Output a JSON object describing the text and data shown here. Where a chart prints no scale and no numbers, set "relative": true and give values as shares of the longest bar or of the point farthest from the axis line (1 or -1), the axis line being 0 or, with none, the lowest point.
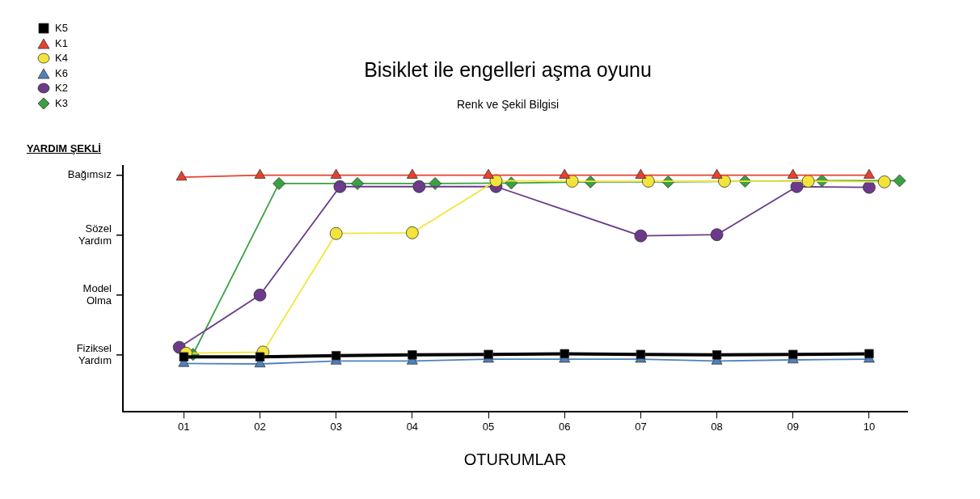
{
  "chart_data": {
    "type": "line",
    "title": "Bisiklet ile engelleri aşma oyunu",
    "subtitle": "Renk ve Şekil Bilgisi",
    "xlabel": "OTURUMLAR",
    "ylabel": "YARDIM ŞEKLİ",
    "relative": true,
    "xlim": [
      0.2,
      10.5
    ],
    "xticks": [
      {
        "value": 1,
        "label": "01"
      },
      {
        "value": 2,
        "label": "02"
      },
      {
        "value": 3,
        "label": "03"
      },
      {
        "value": 4,
        "label": "04"
      },
      {
        "value": 5,
        "label": "05"
      },
      {
        "value": 6,
        "label": "06"
      },
      {
        "value": 7,
        "label": "07"
      },
      {
        "value": 8,
        "label": "08"
      },
      {
        "value": 9,
        "label": "09"
      },
      {
        "value": 10,
        "label": "10"
      }
    ],
    "annotations": [
      "Fiziksel Yardım",
      "Model Olma",
      "Sözel Yardım",
      "Bağımsız"
    ],
    "legend": "top left",
    "line_style": "solid",
    "series": [
      {
        "name": "K5",
        "color": "#000000",
        "marker": "square",
        "x": [
          1,
          2,
          3,
          4,
          5,
          6,
          7,
          8,
          9,
          10
        ],
        "values": [
          0.233,
          0.233,
          0.238,
          0.241,
          0.243,
          0.246,
          0.243,
          0.241,
          0.243,
          0.246
        ]
      },
      {
        "name": "K1",
        "color": "#e8412c",
        "marker": "triangle",
        "x": [
          0.97,
          2,
          3,
          4,
          5,
          6,
          7,
          8,
          9,
          10
        ],
        "values": [
          0.992,
          1,
          1,
          1,
          1,
          1,
          1,
          1,
          1,
          1
        ]
      },
      {
        "name": "K4",
        "color": "#f3e43a",
        "marker": "circle",
        "x": [
          1.03,
          2.04,
          3,
          4,
          5.1,
          6.1,
          7.1,
          8.1,
          9.2,
          10.2
        ],
        "values": [
          0.248,
          0.253,
          0.754,
          0.757,
          0.977,
          0.975,
          0.975,
          0.975,
          0.975,
          0.972
        ]
      },
      {
        "name": "K6",
        "color": "#4f81bd",
        "marker": "triangle",
        "x": [
          1,
          2,
          3,
          4,
          5,
          6,
          7,
          8,
          9,
          10
        ],
        "values": [
          0.205,
          0.203,
          0.215,
          0.215,
          0.223,
          0.223,
          0.223,
          0.215,
          0.22,
          0.223
        ]
      },
      {
        "name": "K2",
        "color": "#6b3a8a",
        "marker": "circle",
        "x": [
          0.94,
          2,
          3.05,
          4.09,
          5.1,
          7,
          8,
          9.05,
          10
        ],
        "values": [
          0.273,
          0.494,
          0.952,
          0.952,
          0.952,
          0.744,
          0.749,
          0.952,
          0.949
        ]
      },
      {
        "name": "K3",
        "color": "#3aa142",
        "marker": "diamond",
        "x": [
          1.12,
          2.25,
          3.28,
          4.3,
          5.3,
          6.34,
          7.36,
          8.37,
          9.38,
          10.4
        ],
        "values": [
          0.243,
          0.965,
          0.965,
          0.965,
          0.967,
          0.972,
          0.972,
          0.975,
          0.977,
          0.977
        ]
      }
    ]
  }
}
